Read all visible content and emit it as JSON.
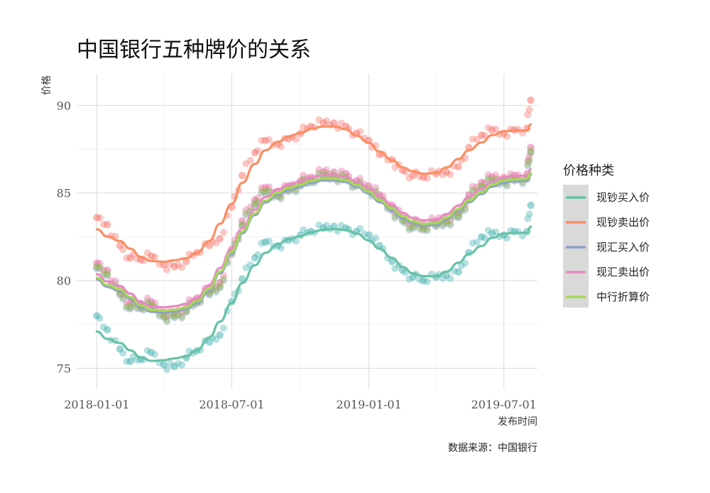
{
  "chart_data": {
    "type": "scatter",
    "title": "中国银行五种牌价的关系",
    "xlabel": "发布时间",
    "ylabel": "价格",
    "caption": "数据来源：中国银行",
    "x_range": [
      "2017-12-05",
      "2019-08-15"
    ],
    "ylim": [
      73.8,
      91.8
    ],
    "x_ticks": [
      {
        "date": "2018-01-01",
        "label": "2018-01-01"
      },
      {
        "date": "2018-07-01",
        "label": "2018-07-01"
      },
      {
        "date": "2019-01-01",
        "label": "2019-01-01"
      },
      {
        "date": "2019-07-01",
        "label": "2019-07-01"
      }
    ],
    "x_minor_ticks": [
      "2018-04-01",
      "2018-10-01",
      "2019-04-01"
    ],
    "y_ticks": [
      75,
      80,
      85,
      90
    ],
    "y_minor_ticks": [
      77.5,
      82.5,
      87.5
    ],
    "grid": true,
    "legend": {
      "title": "价格种类",
      "position": "right",
      "box_color": "#d9d9d9"
    },
    "smooth": true,
    "series": [
      {
        "name": "现钞买入价",
        "line_color": "#66c2a5",
        "point_color": "#4ab3b3",
        "points": [
          [
            "2018-01-01",
            78.0
          ],
          [
            "2018-01-15",
            77.2
          ],
          [
            "2018-02-01",
            76.1
          ],
          [
            "2018-02-15",
            75.4
          ],
          [
            "2018-03-01",
            75.5
          ],
          [
            "2018-03-15",
            75.9
          ],
          [
            "2018-04-01",
            75.2
          ],
          [
            "2018-04-15",
            75.1
          ],
          [
            "2018-05-01",
            75.6
          ],
          [
            "2018-05-15",
            76.0
          ],
          [
            "2018-06-01",
            76.5
          ],
          [
            "2018-06-15",
            76.9
          ],
          [
            "2018-07-01",
            78.8
          ],
          [
            "2018-07-15",
            80.1
          ],
          [
            "2018-08-01",
            81.3
          ],
          [
            "2018-08-15",
            82.2
          ],
          [
            "2018-09-01",
            82.0
          ],
          [
            "2018-09-15",
            82.3
          ],
          [
            "2018-10-01",
            82.6
          ],
          [
            "2018-10-15",
            82.8
          ],
          [
            "2018-11-01",
            83.0
          ],
          [
            "2018-11-15",
            83.1
          ],
          [
            "2018-12-01",
            83.0
          ],
          [
            "2018-12-15",
            82.8
          ],
          [
            "2019-01-01",
            82.6
          ],
          [
            "2019-01-15",
            82.0
          ],
          [
            "2019-02-01",
            81.1
          ],
          [
            "2019-02-15",
            80.6
          ],
          [
            "2019-03-01",
            80.2
          ],
          [
            "2019-03-15",
            80.0
          ],
          [
            "2019-04-01",
            80.2
          ],
          [
            "2019-04-15",
            80.3
          ],
          [
            "2019-05-01",
            80.5
          ],
          [
            "2019-05-15",
            81.6
          ],
          [
            "2019-06-01",
            82.5
          ],
          [
            "2019-06-15",
            82.7
          ],
          [
            "2019-07-01",
            82.6
          ],
          [
            "2019-07-15",
            82.8
          ],
          [
            "2019-08-01",
            82.8
          ],
          [
            "2019-08-06",
            84.3
          ]
        ]
      },
      {
        "name": "现钞卖出价",
        "line_color": "#fc8d62",
        "point_color": "#f8766d",
        "points": [
          [
            "2018-01-01",
            83.6
          ],
          [
            "2018-01-15",
            83.2
          ],
          [
            "2018-02-01",
            82.0
          ],
          [
            "2018-02-15",
            81.3
          ],
          [
            "2018-03-01",
            81.2
          ],
          [
            "2018-03-15",
            81.4
          ],
          [
            "2018-04-01",
            80.9
          ],
          [
            "2018-04-15",
            80.8
          ],
          [
            "2018-05-01",
            81.1
          ],
          [
            "2018-05-15",
            81.6
          ],
          [
            "2018-06-01",
            82.0
          ],
          [
            "2018-06-15",
            82.4
          ],
          [
            "2018-07-01",
            84.2
          ],
          [
            "2018-07-15",
            86.0
          ],
          [
            "2018-08-01",
            87.3
          ],
          [
            "2018-08-15",
            88.0
          ],
          [
            "2018-09-01",
            87.8
          ],
          [
            "2018-09-15",
            88.1
          ],
          [
            "2018-10-01",
            88.4
          ],
          [
            "2018-10-15",
            88.8
          ],
          [
            "2018-11-01",
            89.0
          ],
          [
            "2018-11-15",
            89.0
          ],
          [
            "2018-12-01",
            88.8
          ],
          [
            "2018-12-15",
            88.4
          ],
          [
            "2019-01-01",
            88.0
          ],
          [
            "2019-01-15",
            87.2
          ],
          [
            "2019-02-01",
            86.9
          ],
          [
            "2019-02-15",
            86.3
          ],
          [
            "2019-03-01",
            86.0
          ],
          [
            "2019-03-15",
            85.9
          ],
          [
            "2019-04-01",
            86.1
          ],
          [
            "2019-04-15",
            86.2
          ],
          [
            "2019-05-01",
            86.5
          ],
          [
            "2019-05-15",
            87.6
          ],
          [
            "2019-06-01",
            88.3
          ],
          [
            "2019-06-15",
            88.6
          ],
          [
            "2019-07-01",
            88.4
          ],
          [
            "2019-07-15",
            88.6
          ],
          [
            "2019-08-01",
            88.7
          ],
          [
            "2019-08-06",
            90.3
          ]
        ]
      },
      {
        "name": "现汇买入价",
        "line_color": "#8da0cb",
        "point_color": "#8da0cb",
        "points": [
          [
            "2018-01-01",
            80.7
          ],
          [
            "2018-01-15",
            80.3
          ],
          [
            "2018-02-01",
            79.2
          ],
          [
            "2018-02-15",
            78.4
          ],
          [
            "2018-03-01",
            78.4
          ],
          [
            "2018-03-15",
            78.5
          ],
          [
            "2018-04-01",
            77.9
          ],
          [
            "2018-04-15",
            77.9
          ],
          [
            "2018-05-01",
            78.2
          ],
          [
            "2018-05-15",
            78.7
          ],
          [
            "2018-06-01",
            79.2
          ],
          [
            "2018-06-15",
            79.6
          ],
          [
            "2018-07-01",
            81.5
          ],
          [
            "2018-07-15",
            83.1
          ],
          [
            "2018-08-01",
            84.3
          ],
          [
            "2018-08-15",
            85.0
          ],
          [
            "2018-09-01",
            84.8
          ],
          [
            "2018-09-15",
            85.1
          ],
          [
            "2018-10-01",
            85.4
          ],
          [
            "2018-10-15",
            85.6
          ],
          [
            "2018-11-01",
            85.9
          ],
          [
            "2018-11-15",
            85.9
          ],
          [
            "2018-12-01",
            85.8
          ],
          [
            "2018-12-15",
            85.4
          ],
          [
            "2019-01-01",
            85.1
          ],
          [
            "2019-01-15",
            84.6
          ],
          [
            "2019-02-01",
            84.0
          ],
          [
            "2019-02-15",
            83.4
          ],
          [
            "2019-03-01",
            83.0
          ],
          [
            "2019-03-15",
            82.9
          ],
          [
            "2019-04-01",
            83.1
          ],
          [
            "2019-04-15",
            83.3
          ],
          [
            "2019-05-01",
            83.6
          ],
          [
            "2019-05-15",
            84.6
          ],
          [
            "2019-06-01",
            85.3
          ],
          [
            "2019-06-15",
            85.6
          ],
          [
            "2019-07-01",
            85.6
          ],
          [
            "2019-07-15",
            85.7
          ],
          [
            "2019-08-01",
            85.8
          ],
          [
            "2019-08-06",
            87.3
          ]
        ]
      },
      {
        "name": "现汇卖出价",
        "line_color": "#e78ac3",
        "point_color": "#e86aa7",
        "points": [
          [
            "2018-01-01",
            81.0
          ],
          [
            "2018-01-15",
            80.6
          ],
          [
            "2018-02-01",
            79.5
          ],
          [
            "2018-02-15",
            78.7
          ],
          [
            "2018-03-01",
            78.7
          ],
          [
            "2018-03-15",
            78.8
          ],
          [
            "2018-04-01",
            78.2
          ],
          [
            "2018-04-15",
            78.2
          ],
          [
            "2018-05-01",
            78.5
          ],
          [
            "2018-05-15",
            79.0
          ],
          [
            "2018-06-01",
            79.5
          ],
          [
            "2018-06-15",
            79.9
          ],
          [
            "2018-07-01",
            81.8
          ],
          [
            "2018-07-15",
            83.4
          ],
          [
            "2018-08-01",
            84.6
          ],
          [
            "2018-08-15",
            85.3
          ],
          [
            "2018-09-01",
            85.1
          ],
          [
            "2018-09-15",
            85.4
          ],
          [
            "2018-10-01",
            85.7
          ],
          [
            "2018-10-15",
            85.9
          ],
          [
            "2018-11-01",
            86.2
          ],
          [
            "2018-11-15",
            86.2
          ],
          [
            "2018-12-01",
            86.1
          ],
          [
            "2018-12-15",
            85.7
          ],
          [
            "2019-01-01",
            85.4
          ],
          [
            "2019-01-15",
            84.9
          ],
          [
            "2019-02-01",
            84.3
          ],
          [
            "2019-02-15",
            83.7
          ],
          [
            "2019-03-01",
            83.3
          ],
          [
            "2019-03-15",
            83.2
          ],
          [
            "2019-04-01",
            83.4
          ],
          [
            "2019-04-15",
            83.6
          ],
          [
            "2019-05-01",
            83.9
          ],
          [
            "2019-05-15",
            84.9
          ],
          [
            "2019-06-01",
            85.6
          ],
          [
            "2019-06-15",
            85.9
          ],
          [
            "2019-07-01",
            85.9
          ],
          [
            "2019-07-15",
            86.0
          ],
          [
            "2019-08-01",
            86.1
          ],
          [
            "2019-08-06",
            87.6
          ]
        ]
      },
      {
        "name": "中行折算价",
        "line_color": "#a6d854",
        "point_color": "#8fbc4a",
        "points": [
          [
            "2018-01-01",
            80.8
          ],
          [
            "2018-01-15",
            80.4
          ],
          [
            "2018-02-01",
            79.3
          ],
          [
            "2018-02-15",
            78.5
          ],
          [
            "2018-03-01",
            78.5
          ],
          [
            "2018-03-15",
            78.6
          ],
          [
            "2018-04-01",
            78.0
          ],
          [
            "2018-04-15",
            78.0
          ],
          [
            "2018-05-01",
            78.3
          ],
          [
            "2018-05-15",
            78.8
          ],
          [
            "2018-06-01",
            79.3
          ],
          [
            "2018-06-15",
            79.7
          ],
          [
            "2018-07-01",
            81.6
          ],
          [
            "2018-07-15",
            83.2
          ],
          [
            "2018-08-01",
            84.4
          ],
          [
            "2018-08-15",
            85.1
          ],
          [
            "2018-09-01",
            84.9
          ],
          [
            "2018-09-15",
            85.2
          ],
          [
            "2018-10-01",
            85.5
          ],
          [
            "2018-10-15",
            85.7
          ],
          [
            "2018-11-01",
            86.0
          ],
          [
            "2018-11-15",
            86.0
          ],
          [
            "2018-12-01",
            85.9
          ],
          [
            "2018-12-15",
            85.5
          ],
          [
            "2019-01-01",
            85.2
          ],
          [
            "2019-01-15",
            84.7
          ],
          [
            "2019-02-01",
            84.1
          ],
          [
            "2019-02-15",
            83.5
          ],
          [
            "2019-03-01",
            83.1
          ],
          [
            "2019-03-15",
            83.0
          ],
          [
            "2019-04-01",
            83.2
          ],
          [
            "2019-04-15",
            83.4
          ],
          [
            "2019-05-01",
            83.7
          ],
          [
            "2019-05-15",
            84.7
          ],
          [
            "2019-06-01",
            85.4
          ],
          [
            "2019-06-15",
            85.7
          ],
          [
            "2019-07-01",
            85.7
          ],
          [
            "2019-07-15",
            85.8
          ],
          [
            "2019-08-01",
            85.9
          ],
          [
            "2019-08-06",
            87.4
          ]
        ]
      }
    ]
  }
}
